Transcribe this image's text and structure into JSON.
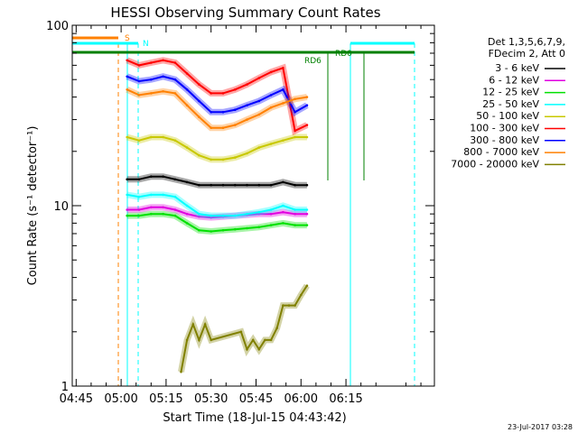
{
  "chart_data": {
    "type": "line",
    "title": "HESSI Observing Summary Count Rates",
    "ylabel": "Count Rate (s⁻¹ detector⁻¹)",
    "xlabel": "Start Time (18-Jul-15 04:43:42)",
    "x_ticks": [
      "04:45",
      "05:00",
      "05:15",
      "05:30",
      "05:45",
      "06:00",
      "06:15"
    ],
    "x_tick_minutes": [
      285,
      300,
      315,
      330,
      345,
      360,
      375
    ],
    "xlim_minutes": [
      283.7,
      404.5
    ],
    "y_scale": "log",
    "ylim": [
      1,
      100
    ],
    "y_ticks": [
      "1",
      "10",
      "100"
    ],
    "y_tick_values": [
      1,
      10,
      100
    ],
    "legend_header": [
      "Det 1,3,5,6,7,9,",
      "FDecim 2, Att 0"
    ],
    "series": [
      {
        "name": "3 - 6 keV",
        "color": "#000000",
        "x": [
          302,
          306,
          310,
          314,
          318,
          322,
          326,
          330,
          334,
          338,
          342,
          346,
          350,
          354,
          358,
          362
        ],
        "y": [
          14,
          14,
          14.5,
          14.5,
          14,
          13.5,
          13,
          13,
          13,
          13,
          13,
          13,
          13,
          13.5,
          13,
          13
        ]
      },
      {
        "name": "6 - 12 keV",
        "color": "#e000e0",
        "x": [
          302,
          306,
          310,
          314,
          318,
          322,
          326,
          330,
          334,
          338,
          342,
          346,
          350,
          354,
          358,
          362
        ],
        "y": [
          9.5,
          9.5,
          9.8,
          9.8,
          9.5,
          9,
          8.7,
          8.6,
          8.7,
          8.8,
          8.9,
          9,
          9,
          9.2,
          9,
          9
        ]
      },
      {
        "name": "12 - 25 keV",
        "color": "#00e000",
        "x": [
          302,
          306,
          310,
          314,
          318,
          322,
          326,
          330,
          334,
          338,
          342,
          346,
          350,
          354,
          358,
          362
        ],
        "y": [
          8.8,
          8.8,
          9,
          9,
          8.8,
          8,
          7.3,
          7.2,
          7.3,
          7.4,
          7.5,
          7.6,
          7.8,
          8,
          7.8,
          7.8
        ]
      },
      {
        "name": "25 - 50 keV",
        "color": "#00ffff",
        "x": [
          302,
          306,
          310,
          314,
          318,
          322,
          326,
          330,
          334,
          338,
          342,
          346,
          350,
          354,
          358,
          362
        ],
        "y": [
          11.5,
          11.2,
          11.5,
          11.5,
          11.2,
          10,
          9,
          8.8,
          8.8,
          8.8,
          9,
          9.2,
          9.5,
          10,
          9.5,
          9.5
        ]
      },
      {
        "name": "50 - 100 keV",
        "color": "#c8c800",
        "x": [
          302,
          306,
          310,
          314,
          318,
          322,
          326,
          330,
          334,
          338,
          342,
          346,
          350,
          354,
          358,
          362
        ],
        "y": [
          24,
          23,
          24,
          24,
          23,
          21,
          19,
          18,
          18,
          18.5,
          19.5,
          21,
          22,
          23,
          24,
          24
        ]
      },
      {
        "name": "100 - 300 keV",
        "color": "#ff0000",
        "x": [
          302,
          306,
          310,
          314,
          318,
          322,
          326,
          330,
          334,
          338,
          342,
          346,
          350,
          354,
          358,
          362
        ],
        "y": [
          64,
          60,
          62,
          64,
          62,
          54,
          47,
          42,
          42,
          44,
          47,
          51,
          55,
          58,
          26,
          28
        ]
      },
      {
        "name": "300 - 800 keV",
        "color": "#0000ff",
        "x": [
          302,
          306,
          310,
          314,
          318,
          322,
          326,
          330,
          334,
          338,
          342,
          346,
          350,
          354,
          358,
          362
        ],
        "y": [
          52,
          49,
          50,
          52,
          50,
          44,
          38,
          33,
          33,
          34,
          36,
          38,
          41,
          44,
          33,
          36
        ]
      },
      {
        "name": "800 - 7000 keV",
        "color": "#ff8000",
        "x": [
          302,
          306,
          310,
          314,
          318,
          322,
          326,
          330,
          334,
          338,
          342,
          346,
          350,
          354,
          358,
          362
        ],
        "y": [
          44,
          41,
          42,
          43,
          42,
          36,
          31,
          27,
          27,
          28,
          30,
          32,
          35,
          37,
          39,
          40
        ]
      },
      {
        "name": "7000 - 20000 keV",
        "color": "#808000",
        "x": [
          320,
          322,
          324,
          326,
          328,
          330,
          340,
          342,
          344,
          346,
          348,
          350,
          352,
          354,
          356,
          358,
          360,
          362
        ],
        "y": [
          1.2,
          1.8,
          2.2,
          1.8,
          2.2,
          1.8,
          2,
          1.6,
          1.8,
          1.6,
          1.8,
          1.8,
          2.1,
          2.8,
          2.8,
          2.8,
          3.2,
          3.6
        ]
      }
    ],
    "annotations": [
      "S",
      "N",
      "RD6",
      "RD0"
    ],
    "footer_date": "23-Jul-2017 03:28",
    "grid": false
  }
}
